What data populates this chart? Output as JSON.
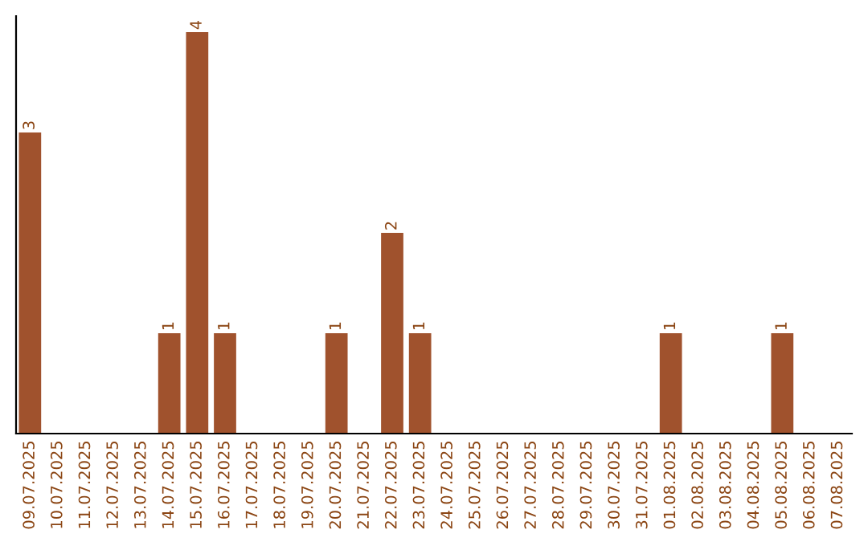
{
  "chart_data": {
    "type": "bar",
    "categories": [
      "09.07.2025",
      "10.07.2025",
      "11.07.2025",
      "12.07.2025",
      "13.07.2025",
      "14.07.2025",
      "15.07.2025",
      "16.07.2025",
      "17.07.2025",
      "18.07.2025",
      "19.07.2025",
      "20.07.2025",
      "21.07.2025",
      "22.07.2025",
      "23.07.2025",
      "24.07.2025",
      "25.07.2025",
      "26.07.2025",
      "27.07.2025",
      "28.07.2025",
      "29.07.2025",
      "30.07.2025",
      "31.07.2025",
      "01.08.2025",
      "02.08.2025",
      "03.08.2025",
      "04.08.2025",
      "05.08.2025",
      "06.08.2025",
      "07.08.2025"
    ],
    "values": [
      3,
      0,
      0,
      0,
      0,
      1,
      4,
      1,
      0,
      0,
      0,
      1,
      0,
      2,
      1,
      0,
      0,
      0,
      0,
      0,
      0,
      0,
      0,
      1,
      0,
      0,
      0,
      1,
      0,
      0
    ],
    "value_labels": [
      "3",
      null,
      null,
      null,
      null,
      "1",
      "4",
      "1",
      null,
      null,
      null,
      "1",
      null,
      "2",
      "1",
      null,
      null,
      null,
      null,
      null,
      null,
      null,
      null,
      "1",
      null,
      null,
      null,
      "1",
      null,
      null
    ],
    "color": "#a0522d",
    "ylim": [
      0,
      4.16
    ],
    "tick_labels": "x",
    "grid": false,
    "legend": false
  }
}
